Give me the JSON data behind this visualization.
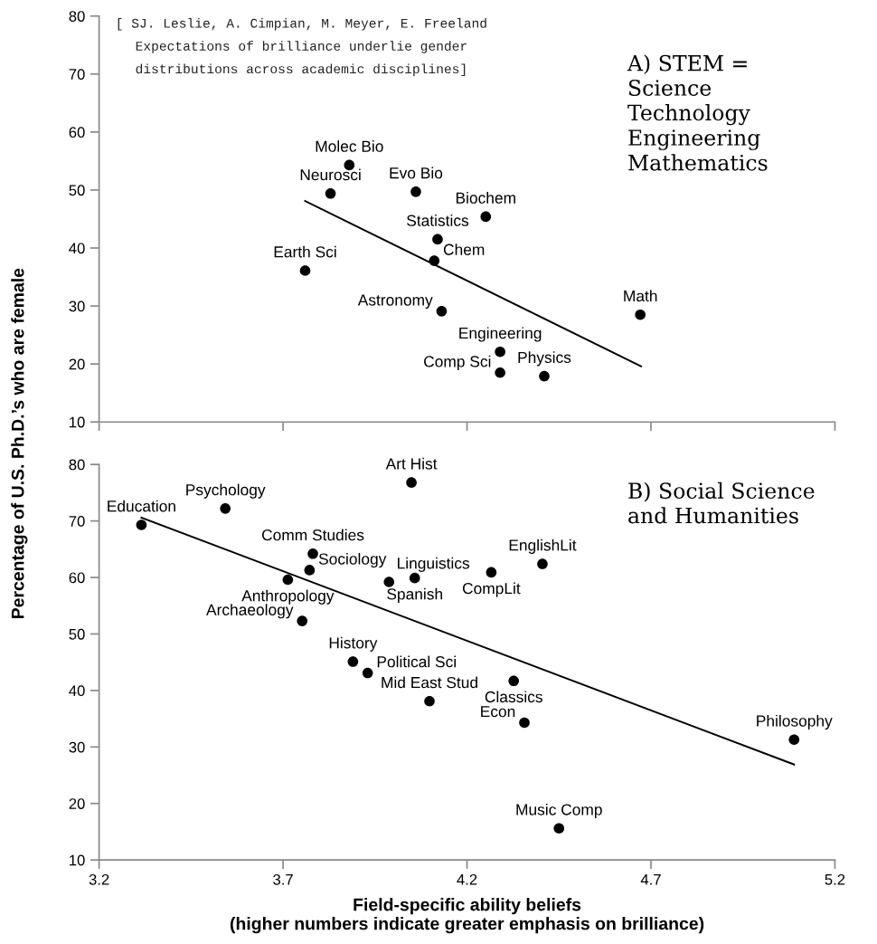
{
  "chart_data": [
    {
      "type": "scatter",
      "ylabel": "Percentage of U.S. Ph.D.’s who are female",
      "x": [
        3.88,
        3.829,
        4.061,
        4.251,
        4.12,
        4.111,
        3.76,
        4.131,
        4.671,
        4.29,
        4.29,
        4.41
      ],
      "series": [
        {
          "color": "#000000",
          "values": [
            54.3,
            49.4,
            49.7,
            45.4,
            41.5,
            37.8,
            36.1,
            29.1,
            28.5,
            22.1,
            18.5,
            17.9
          ]
        },
        {
          "type": "line",
          "color": "#000000",
          "marker": "none",
          "x": [
            3.76,
            4.673
          ],
          "values": [
            48.1,
            19.6
          ]
        }
      ],
      "annotations": [
        "[ SJ. Leslie, A. Cimpian, M. Meyer, E. Freeland\nExpectations of brilliance underlie gender\ndistributions across academic disciplines]",
        "A) STEM =\nScience\nTechnology\nEngineering\nMathematics",
        {
          "text": "Molec Bio",
          "x": 3.88,
          "y": 54.3
        },
        {
          "text": "Neurosci",
          "x": 3.829,
          "y": 49.4
        },
        {
          "text": "Evo Bio",
          "x": 4.061,
          "y": 49.7
        },
        {
          "text": "Biochem",
          "x": 4.251,
          "y": 45.4
        },
        {
          "text": "Statistics",
          "x": 4.12,
          "y": 41.5
        },
        {
          "text": "Chem",
          "x": 4.111,
          "y": 37.8
        },
        {
          "text": "Earth Sci",
          "x": 3.76,
          "y": 36.1
        },
        {
          "text": "Astronomy",
          "x": 4.131,
          "y": 29.1
        },
        {
          "text": "Math",
          "x": 4.671,
          "y": 28.5
        },
        {
          "text": "Engineering",
          "x": 4.29,
          "y": 22.1
        },
        {
          "text": "Comp Sci",
          "x": 4.29,
          "y": 18.5
        },
        {
          "text": "Physics",
          "x": 4.41,
          "y": 17.9
        }
      ],
      "xlim": [
        3.2,
        5.2
      ],
      "xticks": [
        3.2,
        3.7,
        4.2,
        4.7,
        5.2
      ],
      "ylim": [
        10,
        80
      ],
      "yticks": [
        10,
        20,
        30,
        40,
        50,
        60,
        70,
        80
      ],
      "tick_labels": "y",
      "marker": "circle",
      "grid": false
    },
    {
      "type": "scatter",
      "xlabel": "Field-specific ability beliefs\n(higher numbers indicate greater emphasis on brilliance)",
      "x": [
        3.315,
        3.543,
        4.049,
        3.781,
        3.772,
        3.713,
        3.752,
        3.988,
        4.058,
        4.266,
        4.405,
        3.89,
        3.93,
        4.098,
        4.327,
        4.356,
        5.089,
        4.45
      ],
      "series": [
        {
          "color": "#000000",
          "values": [
            69.3,
            72.2,
            76.8,
            64.2,
            61.3,
            59.6,
            52.3,
            59.2,
            59.9,
            60.9,
            62.4,
            45.1,
            43.1,
            38.1,
            41.7,
            34.3,
            31.3,
            15.6
          ]
        },
        {
          "type": "line",
          "color": "#000000",
          "marker": "none",
          "x": [
            3.315,
            5.089
          ],
          "values": [
            70.6,
            26.9
          ]
        }
      ],
      "annotations": [
        "B) Social Science\nand Humanities",
        {
          "text": "Education",
          "x": 3.315,
          "y": 69.3
        },
        {
          "text": "Psychology",
          "x": 3.543,
          "y": 72.2
        },
        {
          "text": "Art Hist",
          "x": 4.049,
          "y": 76.8
        },
        {
          "text": "Comm Studies",
          "x": 3.781,
          "y": 64.2
        },
        {
          "text": "Sociology",
          "x": 3.772,
          "y": 61.3
        },
        {
          "text": "Anthropology",
          "x": 3.713,
          "y": 59.6
        },
        {
          "text": "Archaeology",
          "x": 3.752,
          "y": 52.3
        },
        {
          "text": "Linguistics",
          "x": 3.988,
          "y": 59.2
        },
        {
          "text": "Spanish",
          "x": 4.058,
          "y": 59.9
        },
        {
          "text": "CompLit",
          "x": 4.266,
          "y": 60.9
        },
        {
          "text": "EnglishLit",
          "x": 4.405,
          "y": 62.4
        },
        {
          "text": "History",
          "x": 3.89,
          "y": 45.1
        },
        {
          "text": "Political Sci",
          "x": 3.93,
          "y": 43.1
        },
        {
          "text": "Mid East Stud",
          "x": 4.098,
          "y": 38.1
        },
        {
          "text": "Classics",
          "x": 4.327,
          "y": 41.7
        },
        {
          "text": "Econ",
          "x": 4.356,
          "y": 34.3
        },
        {
          "text": "Philosophy",
          "x": 5.089,
          "y": 31.3
        },
        {
          "text": "Music Comp",
          "x": 4.45,
          "y": 15.6
        }
      ],
      "xlim": [
        3.2,
        5.2
      ],
      "xticks": [
        3.2,
        3.7,
        4.2,
        4.7,
        5.2
      ],
      "ylim": [
        10,
        80
      ],
      "yticks": [
        10,
        20,
        30,
        40,
        50,
        60,
        70,
        80
      ],
      "marker": "circle",
      "grid": false
    }
  ]
}
